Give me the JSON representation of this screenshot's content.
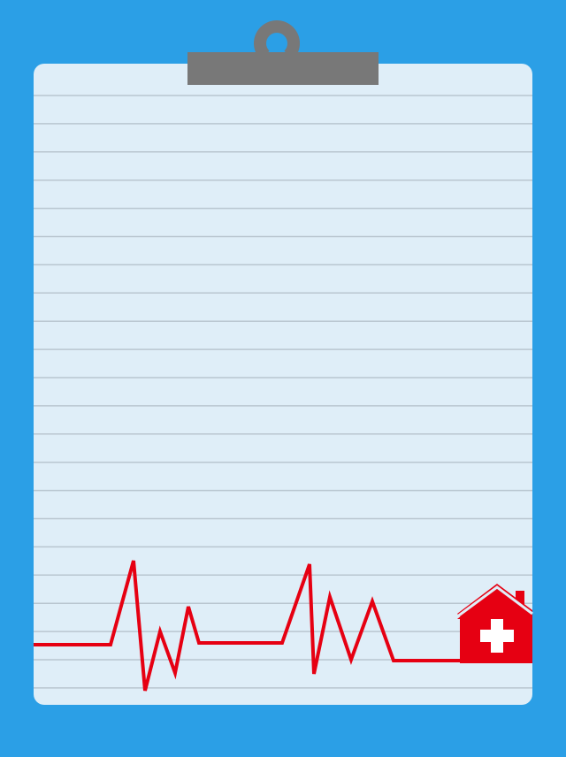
{
  "colors": {
    "background": "#2b9fe6",
    "paper": "#dfeef8",
    "rule_line": "#b9c6d0",
    "clip": "#787878",
    "heartbeat": "#e60012",
    "hospital_cross": "#ffffff"
  },
  "icons": {
    "clipboard_clip": "clipboard-clip-icon",
    "heartbeat_line": "heartbeat-line-icon",
    "hospital": "hospital-icon"
  }
}
